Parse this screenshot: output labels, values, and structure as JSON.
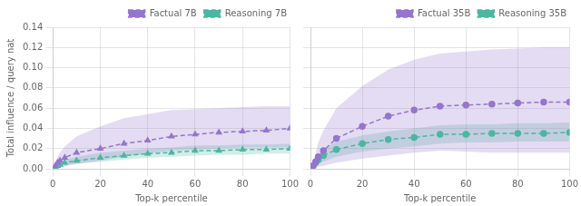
{
  "chart_data": [
    {
      "type": "line",
      "x_label": "Top-k percentile",
      "y_label": "Total influence / query nat",
      "x": [
        1,
        2,
        3,
        5,
        10,
        20,
        30,
        40,
        50,
        60,
        70,
        80,
        90,
        100
      ],
      "series": [
        {
          "name": "Factual 7B",
          "color": "#9575cd",
          "marker": "triangle",
          "line_style": "dashed",
          "values": [
            0.003,
            0.006,
            0.008,
            0.011,
            0.016,
            0.02,
            0.025,
            0.028,
            0.032,
            0.034,
            0.036,
            0.037,
            0.038,
            0.04
          ],
          "low": [
            0.0005,
            0.001,
            0.002,
            0.003,
            0.005,
            0.008,
            0.012,
            0.015,
            0.018,
            0.019,
            0.02,
            0.021,
            0.021,
            0.021
          ],
          "high": [
            0.007,
            0.012,
            0.016,
            0.022,
            0.032,
            0.042,
            0.05,
            0.054,
            0.058,
            0.059,
            0.06,
            0.061,
            0.062,
            0.062
          ]
        },
        {
          "name": "Reasoning 7B",
          "color": "#4db6a0",
          "marker": "triangle",
          "line_style": "dashed",
          "values": [
            0.002,
            0.003,
            0.004,
            0.006,
            0.008,
            0.011,
            0.013,
            0.015,
            0.016,
            0.018,
            0.018,
            0.019,
            0.019,
            0.02
          ],
          "low": [
            0.001,
            0.001,
            0.002,
            0.003,
            0.005,
            0.007,
            0.009,
            0.011,
            0.012,
            0.013,
            0.014,
            0.014,
            0.015,
            0.015
          ],
          "high": [
            0.003,
            0.005,
            0.006,
            0.009,
            0.012,
            0.016,
            0.018,
            0.02,
            0.021,
            0.023,
            0.023,
            0.024,
            0.024,
            0.025
          ]
        }
      ],
      "xlim": [
        0,
        100
      ],
      "xticks": [
        0,
        20,
        40,
        60,
        80,
        100
      ],
      "ylim": [
        0,
        0.14
      ],
      "yticks": [
        {
          "value": 0,
          "label": "0.00"
        },
        0.02,
        0.04,
        0.06,
        0.08,
        {
          "value": 0.1,
          "label": "0.10"
        },
        0.12,
        0.14
      ],
      "grid": true,
      "legend": "top right"
    },
    {
      "type": "line",
      "x_label": "Top-k percentile",
      "x": [
        1,
        2,
        3,
        5,
        10,
        20,
        30,
        40,
        50,
        60,
        70,
        80,
        90,
        100
      ],
      "series": [
        {
          "name": "Factual 35B",
          "color": "#9575cd",
          "marker": "circle",
          "line_style": "dashed",
          "values": [
            0.003,
            0.007,
            0.012,
            0.018,
            0.03,
            0.042,
            0.052,
            0.058,
            0.062,
            0.063,
            0.064,
            0.065,
            0.066,
            0.066
          ],
          "low": [
            0.0005,
            0.001,
            0.002,
            0.003,
            0.006,
            0.01,
            0.013,
            0.016,
            0.018,
            0.017,
            0.016,
            0.016,
            0.016,
            0.016
          ],
          "high": [
            0.007,
            0.015,
            0.026,
            0.038,
            0.06,
            0.082,
            0.098,
            0.108,
            0.114,
            0.116,
            0.118,
            0.119,
            0.12,
            0.12
          ]
        },
        {
          "name": "Reasoning 35B",
          "color": "#4db6a0",
          "marker": "circle",
          "line_style": "dashed",
          "values": [
            0.003,
            0.006,
            0.009,
            0.013,
            0.019,
            0.025,
            0.029,
            0.031,
            0.034,
            0.034,
            0.035,
            0.035,
            0.035,
            0.036
          ],
          "low": [
            0.002,
            0.003,
            0.005,
            0.007,
            0.012,
            0.017,
            0.02,
            0.022,
            0.025,
            0.026,
            0.026,
            0.027,
            0.027,
            0.027
          ],
          "high": [
            0.004,
            0.009,
            0.013,
            0.019,
            0.027,
            0.033,
            0.037,
            0.04,
            0.043,
            0.044,
            0.044,
            0.045,
            0.045,
            0.046
          ]
        }
      ],
      "xlim": [
        0,
        100
      ],
      "xticks": [
        0,
        20,
        40,
        60,
        80,
        100
      ],
      "ylim": [
        0,
        0.14
      ],
      "yticks": [
        0,
        0.02,
        0.04,
        0.06,
        0.08,
        0.1,
        0.12,
        0.14
      ],
      "grid": true,
      "legend": "top right",
      "tick_labels": "x"
    }
  ]
}
